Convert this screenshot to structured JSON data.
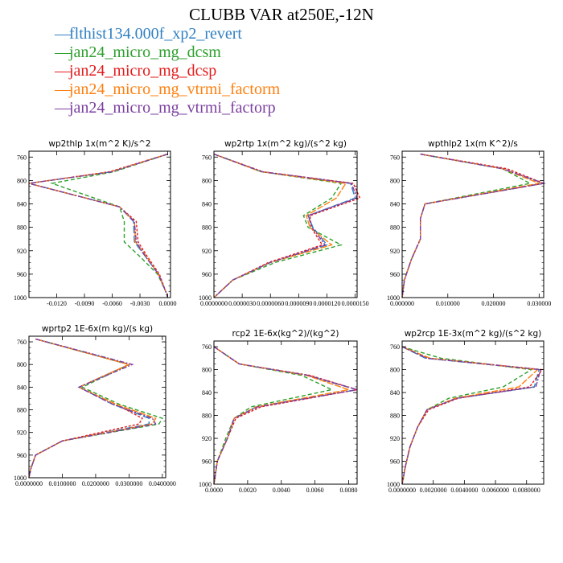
{
  "title": "CLUBB VAR at250E,-12N",
  "legend": [
    {
      "label": "flthist134.000f_xp2_revert",
      "color": "#2f7fc1"
    },
    {
      "label": "jan24_micro_mg_dcsm",
      "color": "#2ca02c"
    },
    {
      "label": "jan24_micro_mg_dcsp",
      "color": "#e31a1c"
    },
    {
      "label": "jan24_micro_mg_vtrmi_factorm",
      "color": "#ff7f0e"
    },
    {
      "label": "jan24_micro_mg_vtrmi_factorp",
      "color": "#7b3fa0"
    }
  ],
  "chart_data": [
    {
      "type": "line",
      "title": "wp2thlp  1x(m^2 K)/s^2",
      "xlim": [
        -0.015,
        0.0003
      ],
      "xticks": [
        -0.012,
        -0.009,
        -0.006,
        -0.003,
        0.0
      ],
      "xtick_labels": [
        "-0.0120",
        "-0.0090",
        "-0.0060",
        "-0.0030",
        "0.0000"
      ],
      "ylim": [
        1000,
        750
      ],
      "yticks": [
        760,
        800,
        840,
        880,
        920,
        960,
        1000
      ],
      "levels": [
        755,
        785,
        805,
        845,
        870,
        905,
        930,
        960,
        990,
        1000
      ],
      "series": [
        {
          "values": [
            0.0,
            -0.006,
            -0.015,
            -0.0052,
            -0.0037,
            -0.0036,
            -0.0024,
            -0.001,
            -0.0002,
            0.0
          ]
        },
        {
          "values": [
            0.0,
            -0.0058,
            -0.0125,
            -0.0052,
            -0.0047,
            -0.0047,
            -0.003,
            -0.0011,
            -0.0002,
            0.0
          ]
        },
        {
          "values": [
            0.0,
            -0.0063,
            -0.015,
            -0.0052,
            -0.0034,
            -0.0032,
            -0.0022,
            -0.0009,
            -0.0002,
            0.0
          ]
        },
        {
          "values": [
            0.0,
            -0.0061,
            -0.015,
            -0.0052,
            -0.0036,
            -0.0035,
            -0.0023,
            -0.001,
            -0.0002,
            0.0
          ]
        },
        {
          "values": [
            0.0,
            -0.006,
            -0.015,
            -0.0052,
            -0.0036,
            -0.0034,
            -0.0024,
            -0.001,
            -0.0002,
            0.0
          ]
        }
      ]
    },
    {
      "type": "line",
      "title": "wp2rtp  1x(m^2 kg)/(s^2 kg)",
      "xlim": [
        0.0,
        1.52e-05
      ],
      "xticks": [
        0.0,
        3e-06,
        6e-06,
        9e-06,
        1.2e-05,
        1.5e-05
      ],
      "xtick_labels": [
        "0.0000000",
        "0.0000030",
        "0.0000060",
        "0.0000090",
        "0.0000120",
        "0.0000150"
      ],
      "ylim": [
        1000,
        750
      ],
      "yticks": [
        760,
        800,
        840,
        880,
        920,
        960,
        1000
      ],
      "levels": [
        755,
        785,
        805,
        830,
        860,
        880,
        910,
        940,
        970,
        1000
      ],
      "series": [
        {
          "values": [
            0.0,
            5e-06,
            1.45e-05,
            1.5e-05,
            1e-05,
            1.05e-05,
            1.2e-05,
            6e-06,
            2e-06,
            0.0
          ],
          "color_ref": 0
        },
        {
          "values": [
            0.0,
            5e-06,
            1.35e-05,
            1.25e-05,
            9.5e-06,
            1e-05,
            1.35e-05,
            6.5e-06,
            2e-06,
            0.0
          ]
        },
        {
          "values": [
            0.0,
            5.2e-06,
            1.48e-05,
            1.55e-05,
            1.02e-05,
            1.03e-05,
            1.15e-05,
            5.8e-06,
            2e-06,
            0.0
          ]
        },
        {
          "values": [
            0.0,
            5e-06,
            1.4e-05,
            1.3e-05,
            9.8e-06,
            1.02e-05,
            1.25e-05,
            6e-06,
            2e-06,
            0.0
          ]
        },
        {
          "values": [
            0.0,
            5.1e-06,
            1.46e-05,
            1.52e-05,
            1e-05,
            1.04e-05,
            1.18e-05,
            6e-06,
            2e-06,
            0.0
          ]
        }
      ]
    },
    {
      "type": "line",
      "title": "wpthlp2  1x(m K^2)/s",
      "xlim": [
        0.0,
        0.031
      ],
      "xticks": [
        0.0,
        0.01,
        0.02,
        0.03
      ],
      "xtick_labels": [
        "0.000000",
        "0.010000",
        "0.020000",
        "0.030000"
      ],
      "ylim": [
        1000,
        750
      ],
      "yticks": [
        760,
        800,
        840,
        880,
        920,
        960,
        1000
      ],
      "levels": [
        755,
        780,
        805,
        840,
        865,
        900,
        935,
        970,
        1000
      ],
      "series": [
        {
          "values": [
            0.004,
            0.022,
            0.031,
            0.005,
            0.004,
            0.004,
            0.002,
            0.0005,
            0.0
          ]
        },
        {
          "values": [
            0.004,
            0.022,
            0.028,
            0.005,
            0.004,
            0.004,
            0.002,
            0.0005,
            0.0
          ]
        },
        {
          "values": [
            0.004,
            0.023,
            0.031,
            0.005,
            0.004,
            0.004,
            0.002,
            0.0005,
            0.0
          ]
        },
        {
          "values": [
            0.004,
            0.022,
            0.03,
            0.005,
            0.004,
            0.004,
            0.002,
            0.0005,
            0.0
          ]
        },
        {
          "values": [
            0.004,
            0.022,
            0.031,
            0.005,
            0.004,
            0.004,
            0.002,
            0.0005,
            0.0
          ]
        }
      ]
    },
    {
      "type": "line",
      "title": "wprtp2  1E-6x(m kg)/(s kg)",
      "xlim": [
        0.0,
        0.041
      ],
      "xticks": [
        0.0,
        0.01,
        0.02,
        0.03,
        0.04
      ],
      "xtick_labels": [
        "0.0000000",
        "0.0100000",
        "0.0200000",
        "0.0300000",
        "0.0400000"
      ],
      "ylim": [
        1000,
        750
      ],
      "yticks": [
        760,
        800,
        840,
        880,
        920,
        960,
        1000
      ],
      "levels": [
        755,
        800,
        840,
        870,
        895,
        905,
        935,
        960,
        985,
        1000
      ],
      "series": [
        {
          "values": [
            0.002,
            0.03,
            0.015,
            0.025,
            0.036,
            0.036,
            0.01,
            0.002,
            0.0005,
            0.0
          ]
        },
        {
          "values": [
            0.002,
            0.03,
            0.016,
            0.027,
            0.04,
            0.039,
            0.01,
            0.002,
            0.0005,
            0.0
          ]
        },
        {
          "values": [
            0.002,
            0.03,
            0.015,
            0.026,
            0.034,
            0.033,
            0.01,
            0.002,
            0.0005,
            0.0
          ]
        },
        {
          "values": [
            0.002,
            0.03,
            0.015,
            0.026,
            0.038,
            0.037,
            0.01,
            0.002,
            0.0005,
            0.0
          ]
        },
        {
          "values": [
            0.002,
            0.031,
            0.015,
            0.025,
            0.037,
            0.038,
            0.01,
            0.002,
            0.0005,
            0.0
          ]
        }
      ]
    },
    {
      "type": "line",
      "title": "rcp2  1E-6x(kg^2)/(kg^2)",
      "xlim": [
        0.0,
        0.0085
      ],
      "xticks": [
        0.0,
        0.002,
        0.004,
        0.006,
        0.008
      ],
      "xtick_labels": [
        "0.0000",
        "0.0020",
        "0.0040",
        "0.0060",
        "0.0080"
      ],
      "ylim": [
        1000,
        750
      ],
      "yticks": [
        760,
        800,
        840,
        880,
        920,
        960,
        1000
      ],
      "levels": [
        760,
        790,
        810,
        835,
        865,
        885,
        920,
        960,
        1000
      ],
      "series": [
        {
          "values": [
            0.0,
            0.0015,
            0.0055,
            0.0085,
            0.0025,
            0.0012,
            0.0008,
            0.0002,
            0.0
          ]
        },
        {
          "values": [
            0.0,
            0.0015,
            0.0052,
            0.007,
            0.0022,
            0.0012,
            0.0007,
            0.0002,
            0.0
          ]
        },
        {
          "values": [
            0.0,
            0.0015,
            0.0057,
            0.0085,
            0.0028,
            0.0013,
            0.0008,
            0.0002,
            0.0
          ]
        },
        {
          "values": [
            0.0,
            0.0015,
            0.0055,
            0.008,
            0.0025,
            0.0012,
            0.0008,
            0.0002,
            0.0
          ]
        },
        {
          "values": [
            0.0,
            0.0015,
            0.0056,
            0.0085,
            0.0026,
            0.0012,
            0.0008,
            0.0002,
            0.0
          ]
        }
      ]
    },
    {
      "type": "line",
      "title": "wp2rcp  1E-3x(m^2 kg)/(s^2 kg)",
      "xlim": [
        0.0,
        0.0091
      ],
      "xticks": [
        0.0,
        0.002,
        0.004,
        0.006,
        0.008
      ],
      "xtick_labels": [
        "0.0000000",
        "0.0020000",
        "0.0040000",
        "0.0060000",
        "0.0080000"
      ],
      "ylim": [
        1000,
        750
      ],
      "yticks": [
        760,
        800,
        840,
        880,
        920,
        960,
        1000
      ],
      "levels": [
        760,
        780,
        800,
        830,
        850,
        870,
        900,
        935,
        970,
        1000
      ],
      "series": [
        {
          "values": [
            0.0,
            0.0015,
            0.0088,
            0.0085,
            0.0035,
            0.0016,
            0.001,
            0.0005,
            0.0002,
            0.0
          ]
        },
        {
          "values": [
            0.0,
            0.0025,
            0.0083,
            0.0065,
            0.003,
            0.0016,
            0.001,
            0.0005,
            0.0002,
            0.0
          ]
        },
        {
          "values": [
            0.0,
            0.0017,
            0.009,
            0.0082,
            0.0036,
            0.0017,
            0.001,
            0.0005,
            0.0002,
            0.0
          ]
        },
        {
          "values": [
            0.0,
            0.0018,
            0.0087,
            0.0075,
            0.0034,
            0.0016,
            0.001,
            0.0005,
            0.0002,
            0.0
          ]
        },
        {
          "values": [
            0.0,
            0.0016,
            0.0089,
            0.0086,
            0.0035,
            0.0016,
            0.001,
            0.0005,
            0.0002,
            0.0
          ]
        }
      ]
    }
  ]
}
